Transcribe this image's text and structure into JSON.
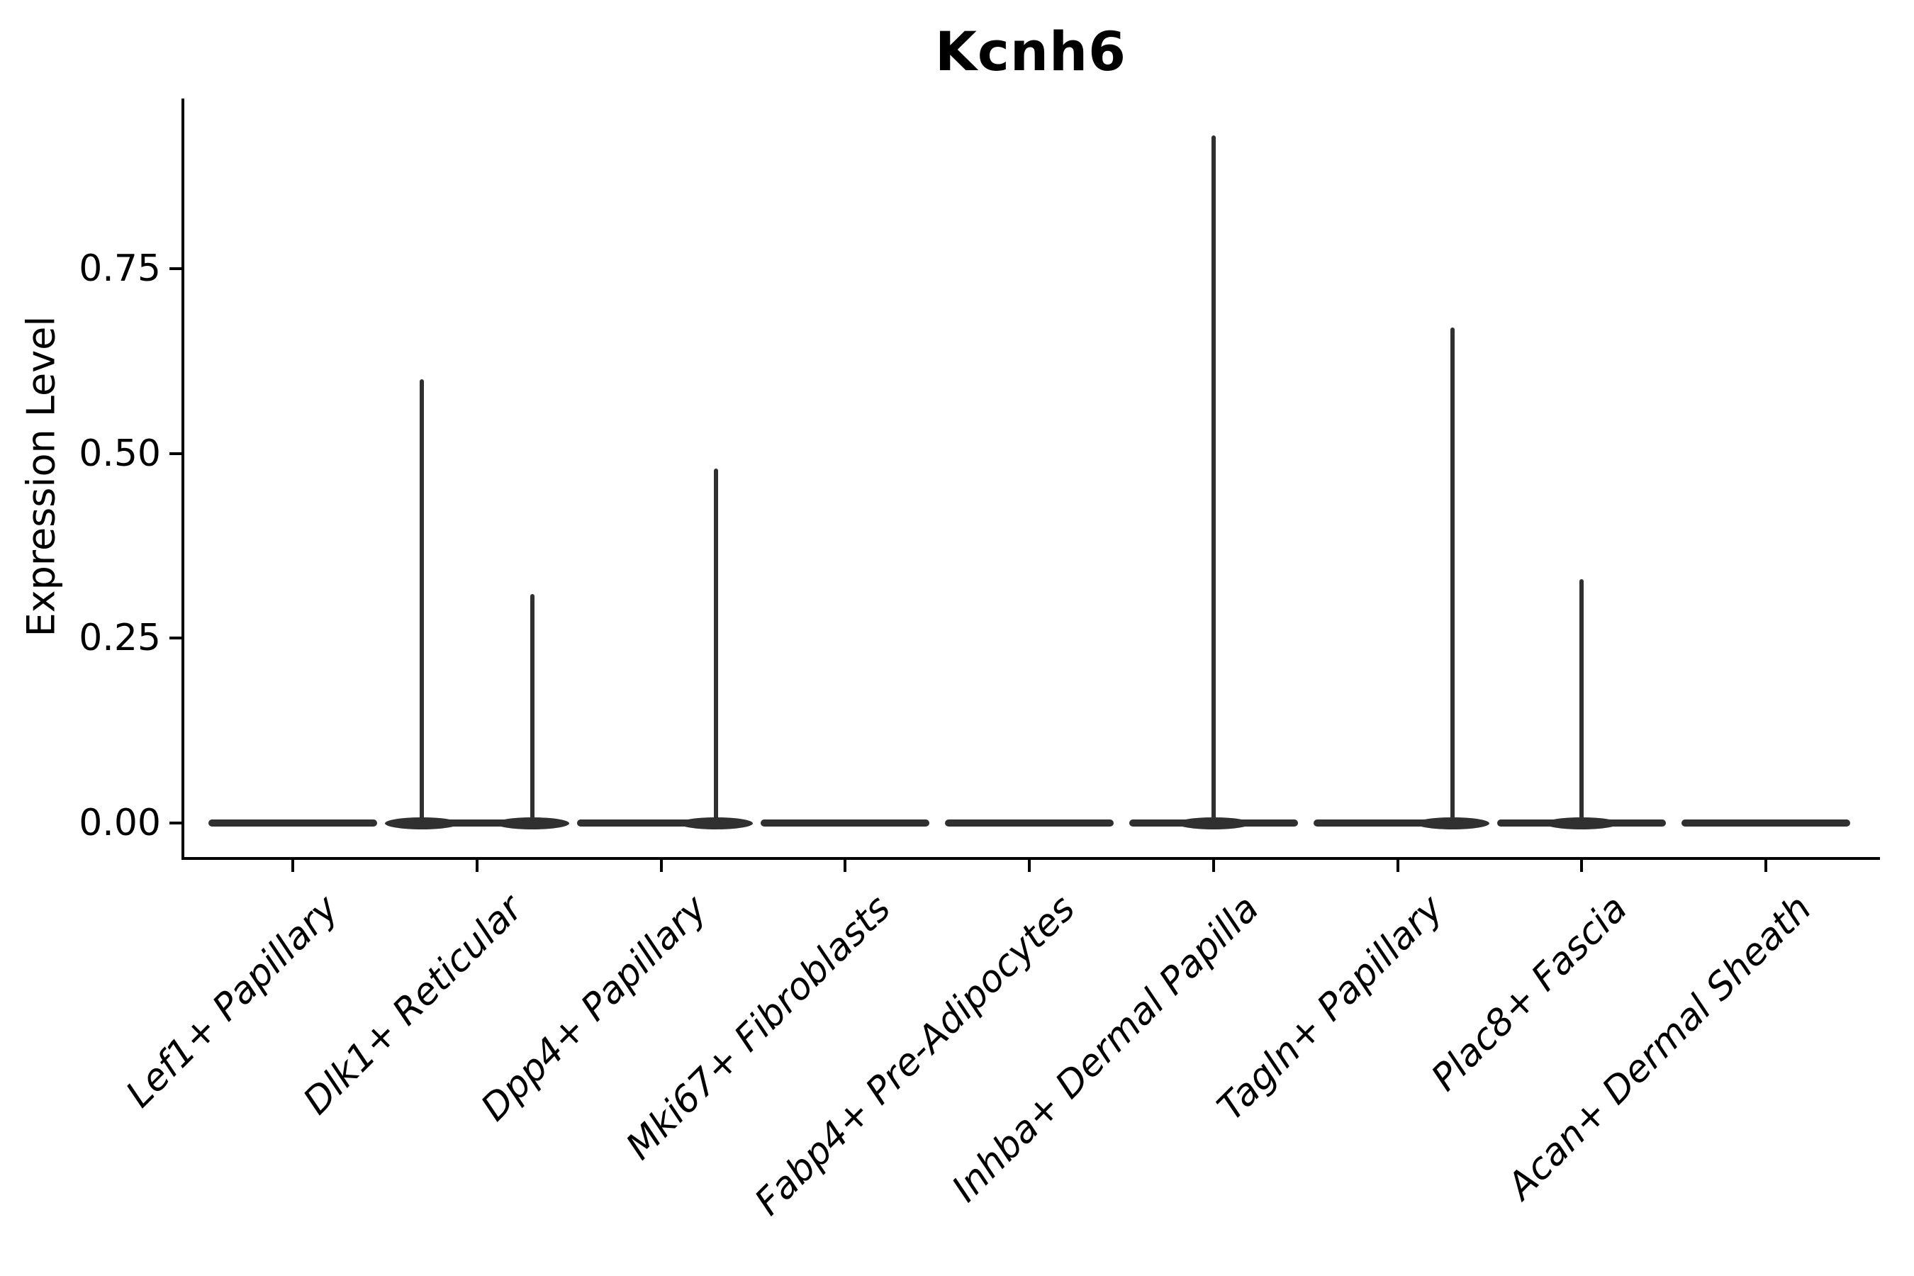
{
  "chart_data": {
    "type": "violin",
    "title": "Kcnh6",
    "xlabel": "",
    "ylabel": "Expression Level",
    "ytick_labels": [
      "0.00",
      "0.25",
      "0.50",
      "0.75"
    ],
    "ytick_values": [
      0.0,
      0.25,
      0.5,
      0.75
    ],
    "ylim": [
      -0.046,
      0.98
    ],
    "grid": false,
    "legend": "none",
    "categories": [
      "Lef1+ Papillary",
      "Dlk1+ Reticular",
      "Dpp4+ Papillary",
      "Mki67+ Fibroblasts",
      "Fabp4+ Pre-Adipocytes",
      "Inhba+ Dermal Papilla",
      "Tagln+ Papillary",
      "Plac8+ Fascia",
      "Acan+ Dermal Sheath"
    ],
    "max_expression_per_category": [
      0,
      0.6,
      0.48,
      0,
      0,
      0.93,
      0.67,
      0.33,
      0
    ],
    "violins": [
      {
        "category": "Lef1+ Papillary",
        "body": "flat-at-zero",
        "spikes": []
      },
      {
        "category": "Dlk1+ Reticular",
        "body": "flat-at-zero",
        "spikes": [
          {
            "offset_frac": -0.3,
            "max": 0.6
          },
          {
            "offset_frac": 0.3,
            "max": 0.31
          }
        ]
      },
      {
        "category": "Dpp4+ Papillary",
        "body": "flat-at-zero",
        "spikes": [
          {
            "offset_frac": 0.3,
            "max": 0.48
          }
        ]
      },
      {
        "category": "Mki67+ Fibroblasts",
        "body": "flat-at-zero",
        "spikes": []
      },
      {
        "category": "Fabp4+ Pre-Adipocytes",
        "body": "flat-at-zero",
        "spikes": []
      },
      {
        "category": "Inhba+ Dermal Papilla",
        "body": "flat-at-zero",
        "spikes": [
          {
            "offset_frac": 0.0,
            "max": 0.93
          }
        ]
      },
      {
        "category": "Tagln+ Papillary",
        "body": "flat-at-zero",
        "spikes": [
          {
            "offset_frac": 0.3,
            "max": 0.67
          }
        ]
      },
      {
        "category": "Plac8+ Fascia",
        "body": "flat-at-zero",
        "spikes": [
          {
            "offset_frac": 0.0,
            "max": 0.33
          }
        ]
      },
      {
        "category": "Acan+ Dermal Sheath",
        "body": "flat-at-zero",
        "spikes": []
      }
    ],
    "colors": {
      "axis": "#000000",
      "text": "#000000",
      "violin": "#303030",
      "background": "#ffffff"
    }
  }
}
